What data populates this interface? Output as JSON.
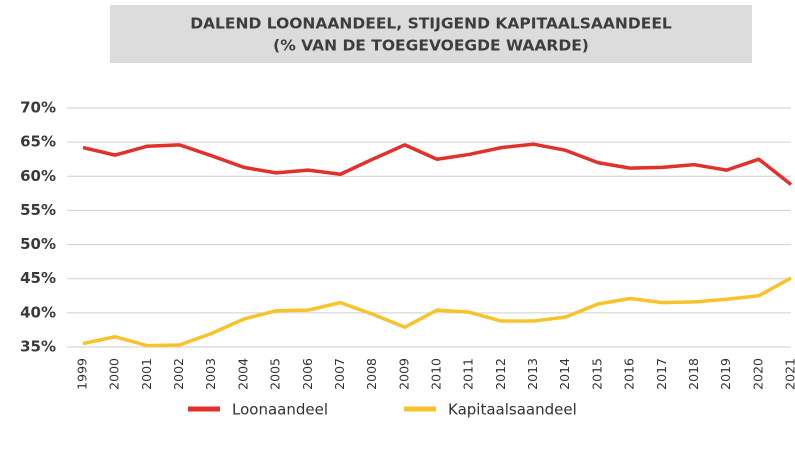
{
  "chart_data": {
    "type": "line",
    "title": "DALEND LOONAANDEEL, STIJGEND KAPITAALSAANDEEL",
    "subtitle": "(% VAN DE TOEGEVOEGDE WAARDE)",
    "x": [
      1999,
      2000,
      2001,
      2002,
      2003,
      2004,
      2005,
      2006,
      2007,
      2008,
      2009,
      2010,
      2011,
      2012,
      2013,
      2014,
      2015,
      2016,
      2017,
      2018,
      2019,
      2020,
      2021
    ],
    "xlim": [
      1999,
      2021
    ],
    "series": [
      {
        "name": "Loonaandeel",
        "color": "#e2302a",
        "values": [
          64.2,
          63.1,
          64.4,
          64.6,
          63.0,
          61.3,
          60.5,
          60.9,
          60.3,
          62.5,
          64.6,
          62.5,
          63.2,
          64.2,
          64.7,
          63.8,
          62.0,
          61.2,
          61.3,
          61.7,
          60.9,
          62.5,
          58.8
        ]
      },
      {
        "name": "Kapitaalsaandeel",
        "color": "#f8c32a",
        "values": [
          35.5,
          36.5,
          35.2,
          35.3,
          37.0,
          39.1,
          40.3,
          40.4,
          41.5,
          39.8,
          37.9,
          40.4,
          40.1,
          38.8,
          38.8,
          39.4,
          41.3,
          42.1,
          41.5,
          41.6,
          42.0,
          42.5,
          45.1
        ]
      }
    ],
    "ylim": [
      35,
      70
    ],
    "yticks": [
      {
        "value": 35,
        "label": "35%"
      },
      {
        "value": 40,
        "label": "40%"
      },
      {
        "value": 45,
        "label": "45%"
      },
      {
        "value": 50,
        "label": "50%"
      },
      {
        "value": 55,
        "label": "55%"
      },
      {
        "value": 60,
        "label": "60%"
      },
      {
        "value": 65,
        "label": "65%"
      },
      {
        "value": 70,
        "label": "70%"
      }
    ],
    "grid": true,
    "legend": "bottom"
  }
}
